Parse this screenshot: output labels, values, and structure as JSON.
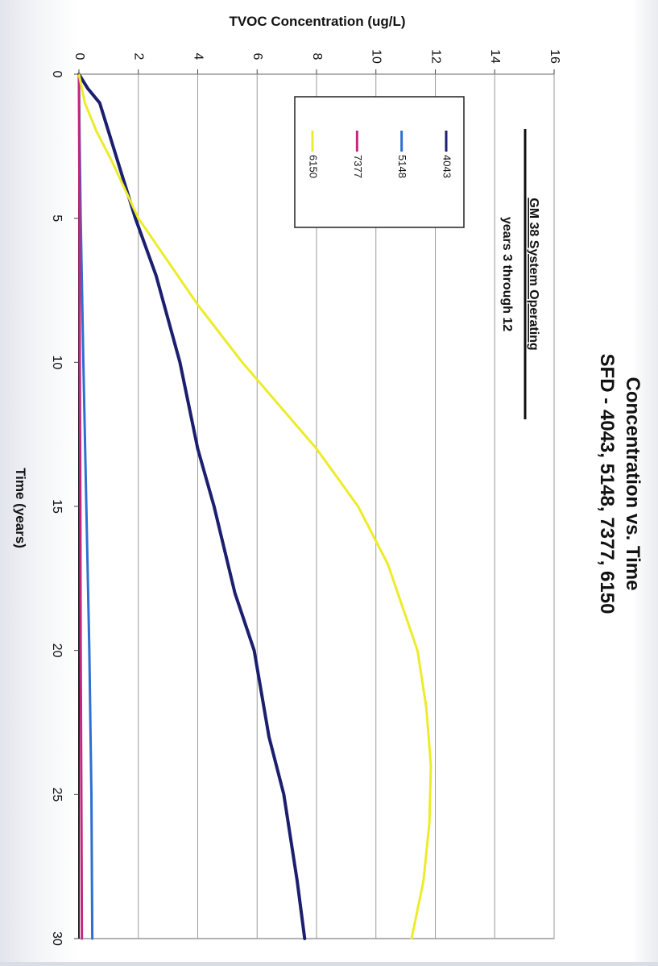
{
  "chart_data": {
    "type": "line",
    "orientation": "rotated 90 degrees clockwise",
    "title": "Concentration vs. Time",
    "subtitle": "SFD - 4043, 5148, 7377, 6150",
    "xlabel": "Time (years)",
    "ylabel": "TVOC Concentration (ug/L)",
    "xlim": [
      0,
      30
    ],
    "ylim": [
      0,
      16
    ],
    "x_ticks": [
      0,
      5,
      10,
      15,
      20,
      25,
      30
    ],
    "y_ticks": [
      0,
      2,
      4,
      6,
      8,
      10,
      12,
      14,
      16
    ],
    "grid": "horizontal major gridlines",
    "legend_position": "top-left (rotated)",
    "annotation": {
      "title": "GM 38 System Operating",
      "subtitle": "years 3 through 12"
    },
    "series": [
      {
        "name": "4043",
        "color": "#1c1f6e",
        "x": [
          0,
          0.5,
          1,
          2,
          3,
          4,
          5,
          7,
          10,
          13,
          15,
          18,
          20,
          23,
          25,
          28,
          30
        ],
        "y": [
          0,
          0.3,
          0.7,
          1.0,
          1.3,
          1.6,
          1.9,
          2.6,
          3.4,
          4.0,
          4.55,
          5.25,
          5.9,
          6.4,
          6.9,
          7.35,
          7.6
        ]
      },
      {
        "name": "5148",
        "color": "#2e6fd1",
        "x": [
          0,
          2,
          5,
          10,
          15,
          20,
          25,
          30
        ],
        "y": [
          0,
          0.02,
          0.06,
          0.15,
          0.25,
          0.35,
          0.42,
          0.45
        ]
      },
      {
        "name": "7377",
        "color": "#c2287f",
        "x": [
          0,
          5,
          10,
          15,
          20,
          25,
          30
        ],
        "y": [
          0,
          0.02,
          0.03,
          0.05,
          0.06,
          0.08,
          0.1
        ]
      },
      {
        "name": "6150",
        "color": "#ecec2a",
        "x": [
          0,
          1,
          2,
          3,
          5,
          8,
          10,
          13,
          15,
          17,
          20,
          22,
          24,
          26,
          28,
          30
        ],
        "y": [
          0,
          0.2,
          0.6,
          1.1,
          2.0,
          4.0,
          5.5,
          8.0,
          9.4,
          10.4,
          11.4,
          11.7,
          11.85,
          11.8,
          11.6,
          11.2
        ]
      }
    ]
  }
}
